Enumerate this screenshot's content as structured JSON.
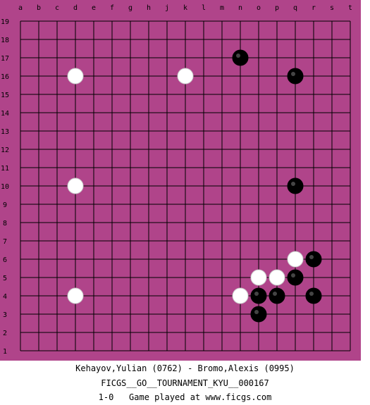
{
  "board": {
    "size": 19,
    "background_color": "#b0448a",
    "line_color": "#000000",
    "column_labels": [
      "a",
      "b",
      "c",
      "d",
      "e",
      "f",
      "g",
      "h",
      "j",
      "k",
      "l",
      "m",
      "n",
      "o",
      "p",
      "q",
      "r",
      "s",
      "t"
    ],
    "row_labels": [
      "19",
      "18",
      "17",
      "16",
      "15",
      "14",
      "13",
      "12",
      "11",
      "10",
      "9",
      "8",
      "7",
      "6",
      "5",
      "4",
      "3",
      "2",
      "1"
    ]
  },
  "stones": {
    "black": [
      "n17",
      "q16",
      "q10",
      "r6",
      "q5",
      "o4",
      "p4",
      "r4",
      "o3"
    ],
    "white": [
      "d16",
      "k16",
      "d10",
      "q6",
      "o5",
      "p5",
      "d4",
      "n4"
    ]
  },
  "footer": {
    "players": "Kehayov,Yulian (0762) - Bromo,Alexis (0995)",
    "tournament": "FICGS__GO__TOURNAMENT_KYU__000167",
    "result_line": "1-0   Game played at www.ficgs.com"
  }
}
